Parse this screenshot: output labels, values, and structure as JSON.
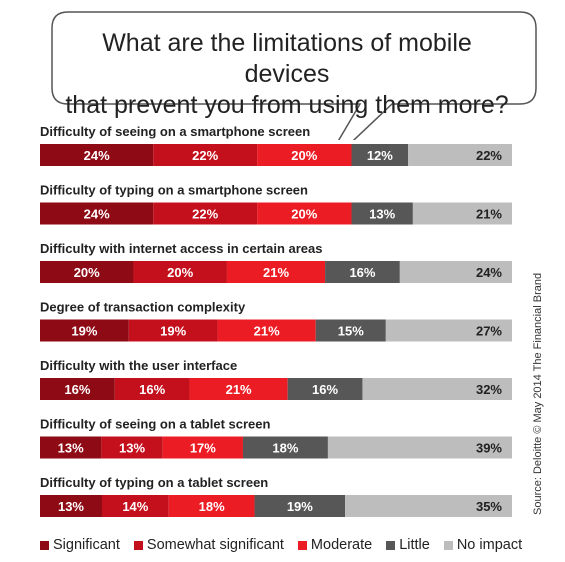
{
  "title_lines": [
    "What are the limitations of mobile devices",
    "that prevent you from using them more?"
  ],
  "source": "Source: Deloitte © May 2014 The Financial Brand",
  "colors": {
    "Significant": "#8e0a14",
    "Somewhat significant": "#c4101c",
    "Moderate": "#ec1c24",
    "Little": "#575757",
    "No impact": "#bdbdbd"
  },
  "chart_data": {
    "type": "bar",
    "orientation": "horizontal",
    "stacked": true,
    "categories": [
      "Difficulty of seeing on a smartphone screen",
      "Difficulty of typing on a smartphone screen",
      "Difficulty with internet access in certain areas",
      "Degree of transaction complexity",
      "Difficulty with the user interface",
      "Difficulty of seeing on a tablet screen",
      "Difficulty of typing on a tablet screen"
    ],
    "series": [
      {
        "name": "Significant",
        "values": [
          24,
          24,
          20,
          19,
          16,
          13,
          13
        ]
      },
      {
        "name": "Somewhat significant",
        "values": [
          22,
          22,
          20,
          19,
          16,
          13,
          14
        ]
      },
      {
        "name": "Moderate",
        "values": [
          20,
          20,
          21,
          21,
          21,
          17,
          18
        ]
      },
      {
        "name": "Little",
        "values": [
          12,
          13,
          16,
          15,
          16,
          18,
          19
        ]
      },
      {
        "name": "No impact",
        "values": [
          22,
          21,
          24,
          27,
          32,
          39,
          35
        ]
      }
    ],
    "value_suffix": "%",
    "legend": "bottom",
    "grid": false
  }
}
